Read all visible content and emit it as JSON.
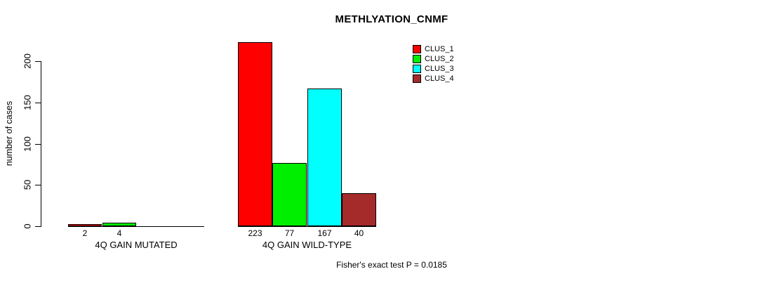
{
  "chart_data": {
    "type": "bar",
    "title": "METHLYATION_CNMF",
    "ylabel": "number of cases",
    "xlabel": "",
    "ylim": [
      0,
      200
    ],
    "yticks": [
      0,
      50,
      100,
      150,
      200
    ],
    "grid": false,
    "legend_position": "top-right",
    "categories": [
      "4Q GAIN MUTATED",
      "4Q GAIN WILD-TYPE"
    ],
    "series": [
      {
        "name": "CLUS_1",
        "color": "#ff0000",
        "values": [
          2,
          223
        ]
      },
      {
        "name": "CLUS_2",
        "color": "#00ee00",
        "values": [
          4,
          77
        ]
      },
      {
        "name": "CLUS_3",
        "color": "#00ffff",
        "values": [
          0,
          167
        ]
      },
      {
        "name": "CLUS_4",
        "color": "#a52a2a",
        "values": [
          0,
          40
        ]
      }
    ],
    "bar_value_labels": [
      [
        "2",
        "4"
      ],
      [
        "223",
        "77",
        "167",
        "40"
      ]
    ],
    "annotation": "Fisher's exact test P = 0.0185",
    "colors": {
      "axis": "#000000",
      "text": "#000000",
      "background": "#ffffff"
    }
  }
}
